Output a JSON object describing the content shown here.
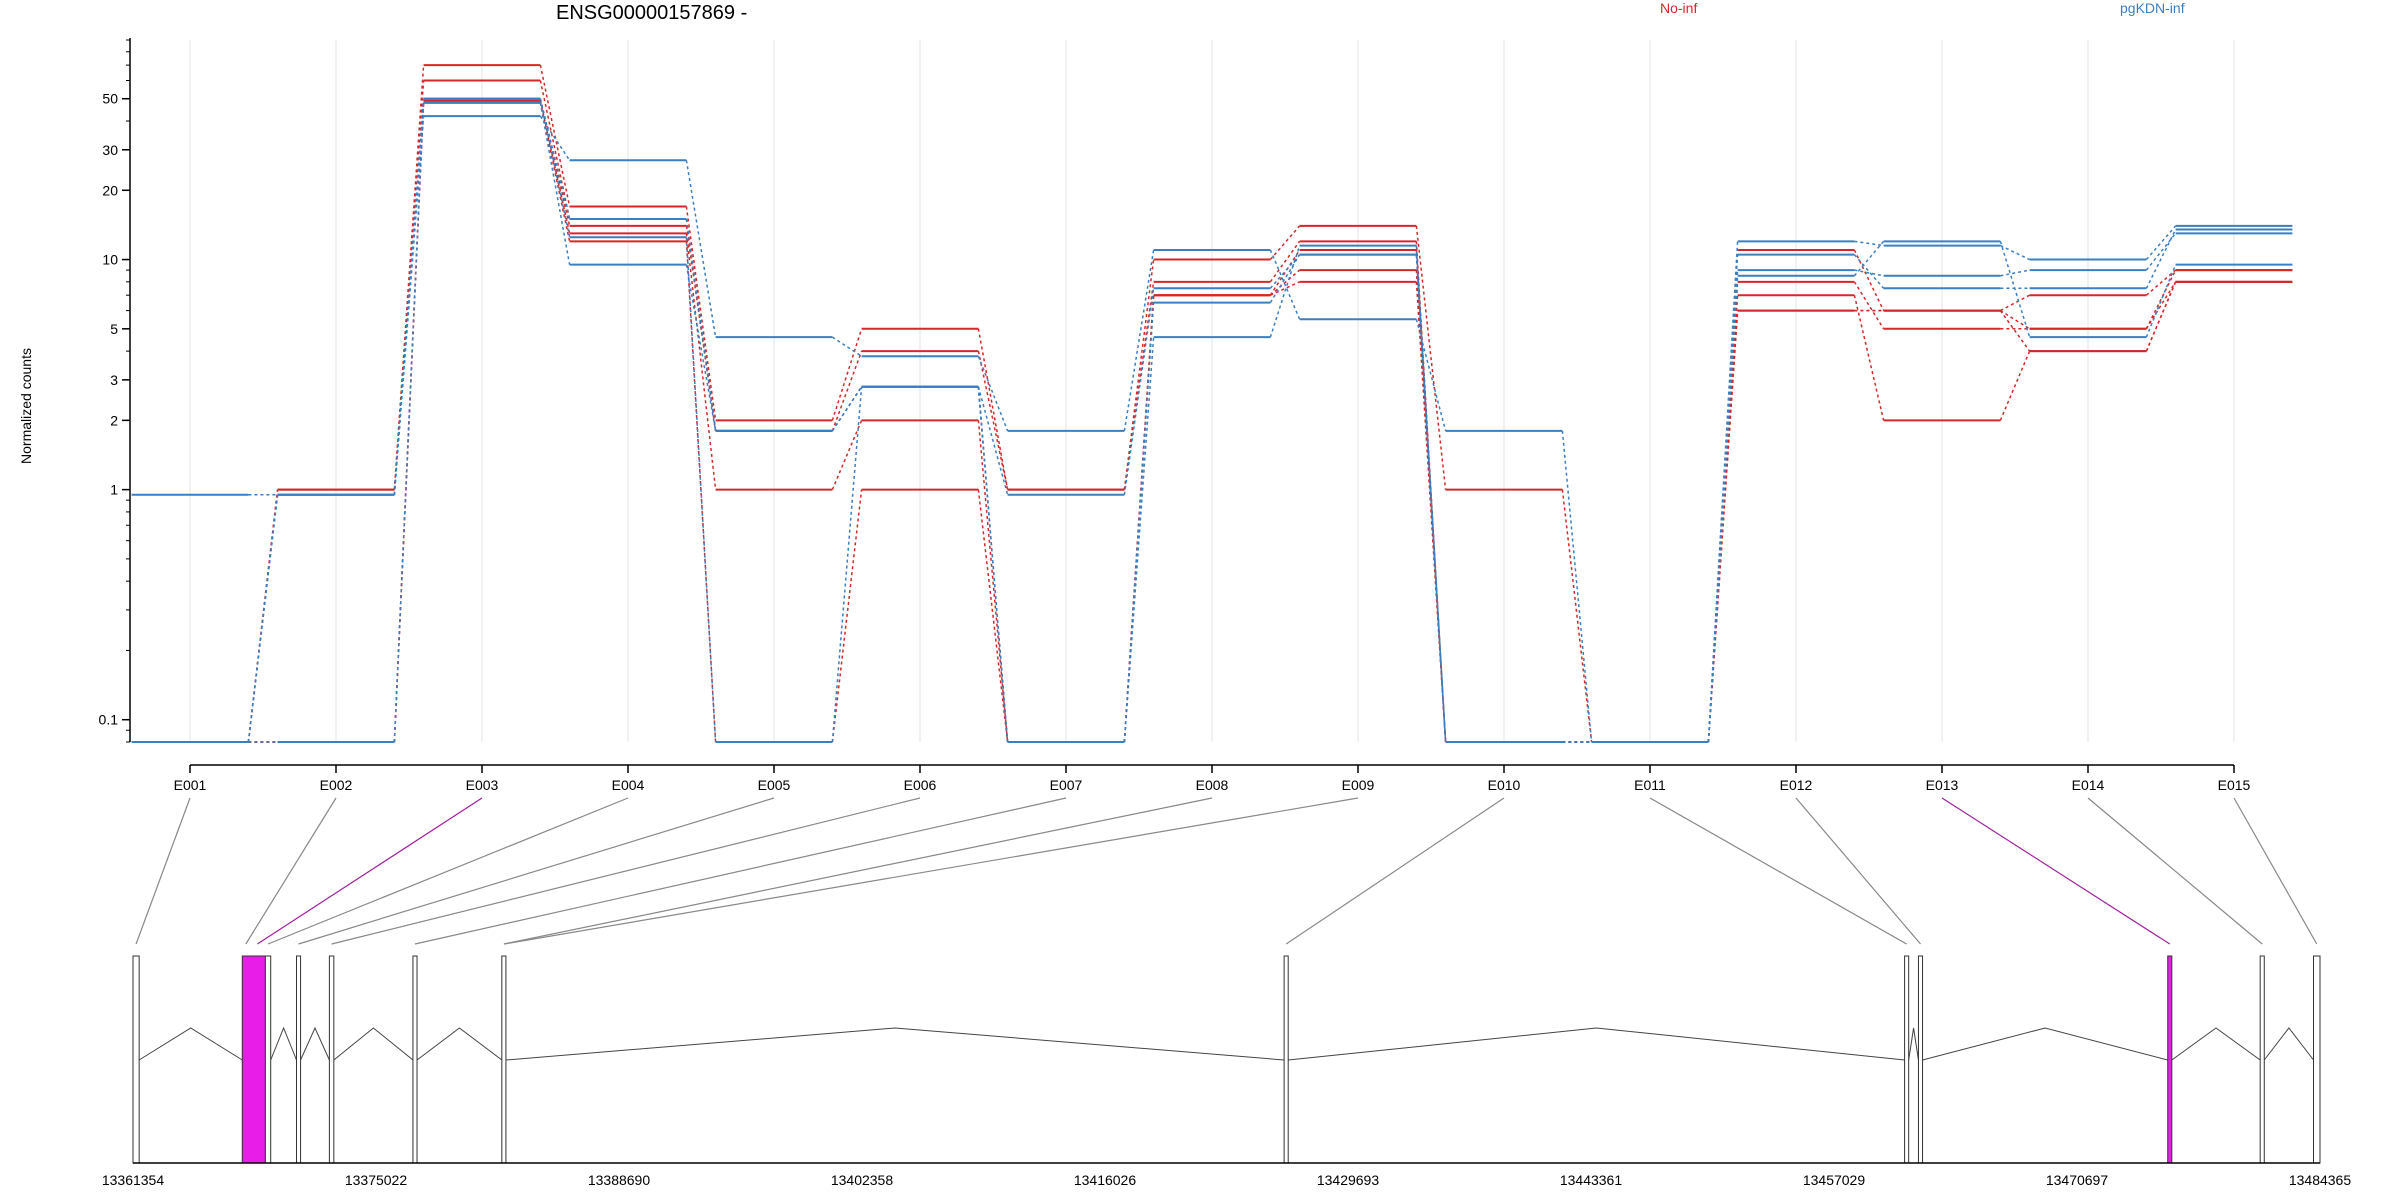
{
  "title": "ENSG00000157869 -",
  "legend": [
    {
      "label": "No-inf",
      "color": "#d62728"
    },
    {
      "label": "pgKDN-inf",
      "color": "#3a7fc1"
    }
  ],
  "highlight_color": "#e81ee8",
  "chart_data": {
    "type": "line",
    "ylabel": "Normalized counts",
    "yscale": "log",
    "ylim": [
      0.08,
      90
    ],
    "yticks": [
      0.1,
      1,
      2,
      3,
      5,
      10,
      20,
      30,
      50
    ],
    "ytick_labels": [
      "0.1",
      "1",
      "2",
      "3",
      "5",
      "10",
      "20",
      "30",
      "50"
    ],
    "categories": [
      "E001",
      "E002",
      "E003",
      "E004",
      "E005",
      "E006",
      "E007",
      "E008",
      "E009",
      "E010",
      "E011",
      "E012",
      "E013",
      "E014",
      "E015"
    ],
    "highlighted_exons": [
      "E003",
      "E013"
    ],
    "series": [
      {
        "group": "No-inf",
        "values": [
          0.08,
          1,
          70,
          17,
          2,
          5,
          1,
          10,
          14,
          1,
          0.08,
          11,
          6,
          7,
          9
        ]
      },
      {
        "group": "No-inf",
        "values": [
          0.08,
          1,
          60,
          15,
          1.8,
          4,
          1,
          8,
          12,
          0.08,
          0.08,
          8,
          5,
          5,
          9
        ]
      },
      {
        "group": "No-inf",
        "values": [
          0.08,
          0.08,
          49,
          13,
          1,
          2,
          0.08,
          7,
          11,
          0.08,
          0.08,
          7,
          2,
          4,
          8
        ]
      },
      {
        "group": "No-inf",
        "values": [
          0.08,
          0.08,
          48,
          12,
          0.08,
          1,
          0.08,
          7,
          9,
          0.08,
          0.08,
          6,
          6,
          5,
          8
        ]
      },
      {
        "group": "No-inf",
        "values": [
          0.08,
          0.08,
          50,
          14,
          1.8,
          2.8,
          0.08,
          7,
          8,
          0.08,
          0.08,
          6,
          6,
          4,
          8
        ]
      },
      {
        "group": "pgKDN-inf",
        "values": [
          0.95,
          0.95,
          42,
          27,
          4.6,
          3.8,
          1.8,
          11,
          5.5,
          1.8,
          0.08,
          12,
          11.5,
          10,
          14
        ]
      },
      {
        "group": "pgKDN-inf",
        "values": [
          0.08,
          0.95,
          48,
          9.5,
          1.8,
          2.8,
          0.95,
          7.5,
          10.5,
          0.08,
          0.08,
          9,
          8.5,
          9,
          13
        ]
      },
      {
        "group": "pgKDN-inf",
        "values": [
          0.08,
          0.95,
          50,
          15,
          1.8,
          2.8,
          0.08,
          6.5,
          10.5,
          0.08,
          0.08,
          10.5,
          7.5,
          7.5,
          13.5
        ]
      },
      {
        "group": "pgKDN-inf",
        "values": [
          0.08,
          0.08,
          50,
          12.5,
          0.08,
          2.8,
          0.08,
          4.6,
          11.5,
          0.08,
          0.08,
          8.5,
          12,
          4.6,
          9.5
        ]
      }
    ],
    "gene_model": {
      "coord_min": 13361354,
      "coord_max": 13484365,
      "axis_labels": [
        "13361354",
        "13375022",
        "13388690",
        "13402358",
        "13416026",
        "13429693",
        "13443361",
        "13457029",
        "13470697",
        "13484365"
      ],
      "exons": [
        {
          "id": "E001",
          "start": 13361354,
          "end": 13361700
        },
        {
          "id": "E002",
          "start": 13367500,
          "end": 13367900
        },
        {
          "id": "E003",
          "start": 13367900,
          "end": 13368800
        },
        {
          "id": "E004",
          "start": 13368800,
          "end": 13369100
        },
        {
          "id": "E005",
          "start": 13370550,
          "end": 13370780
        },
        {
          "id": "E006",
          "start": 13372400,
          "end": 13372650
        },
        {
          "id": "E007",
          "start": 13377100,
          "end": 13377330
        },
        {
          "id": "E008",
          "start": 13382100,
          "end": 13382330
        },
        {
          "id": "E009",
          "start": 13382130,
          "end": 13382330
        },
        {
          "id": "E010",
          "start": 13426100,
          "end": 13426330
        },
        {
          "id": "E011",
          "start": 13461000,
          "end": 13461230
        },
        {
          "id": "E012",
          "start": 13461780,
          "end": 13462010
        },
        {
          "id": "E013",
          "start": 13475800,
          "end": 13476030
        },
        {
          "id": "E014",
          "start": 13481000,
          "end": 13481230
        },
        {
          "id": "E015",
          "start": 13484000,
          "end": 13484365
        }
      ],
      "box_spans": [
        {
          "start": 13361354,
          "end": 13361700,
          "highlight": false
        },
        {
          "start": 13367500,
          "end": 13368800,
          "highlight": true
        },
        {
          "start": 13368800,
          "end": 13369100,
          "highlight": false
        },
        {
          "start": 13370550,
          "end": 13370780,
          "highlight": false
        },
        {
          "start": 13372400,
          "end": 13372650,
          "highlight": false
        },
        {
          "start": 13377100,
          "end": 13377330,
          "highlight": false
        },
        {
          "start": 13382100,
          "end": 13382330,
          "highlight": false
        },
        {
          "start": 13426100,
          "end": 13426330,
          "highlight": false
        },
        {
          "start": 13461000,
          "end": 13461230,
          "highlight": false
        },
        {
          "start": 13461780,
          "end": 13462010,
          "highlight": false
        },
        {
          "start": 13475800,
          "end": 13476030,
          "highlight": true
        },
        {
          "start": 13481000,
          "end": 13481230,
          "highlight": false
        },
        {
          "start": 13484000,
          "end": 13484365,
          "highlight": false
        }
      ]
    }
  }
}
